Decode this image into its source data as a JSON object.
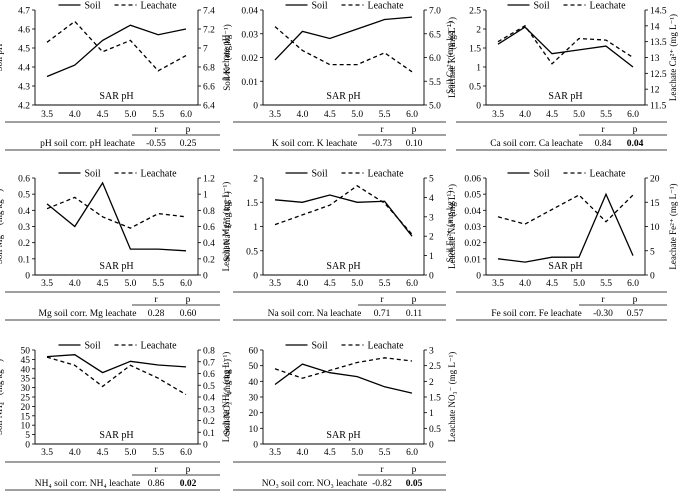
{
  "figure": {
    "legend_soil": "Soil",
    "legend_leachate": "Leachate",
    "r_header": "r",
    "p_header": "p"
  },
  "chart_data": [
    {
      "id": "ph",
      "type": "line",
      "title": "pH",
      "x": [
        3.5,
        4.0,
        4.5,
        5.0,
        5.5,
        6.0
      ],
      "xlabel": "SAR pH",
      "ylabel_left": "Soil pH",
      "ylabel_right": "Leachate pH",
      "ylim_left": [
        4.2,
        4.7
      ],
      "yticks_left": [
        "4.2",
        "4.3",
        "4.4",
        "4.5",
        "4.6",
        "4.7"
      ],
      "ylim_right": [
        6.4,
        7.4
      ],
      "yticks_right": [
        "6.4",
        "6.6",
        "6.8",
        "7",
        "7.2",
        "7.4"
      ],
      "series": [
        {
          "name": "Soil",
          "axis": "left",
          "style": "solid",
          "values": [
            4.35,
            4.41,
            4.54,
            4.62,
            4.57,
            4.6
          ]
        },
        {
          "name": "Leachate",
          "axis": "right",
          "style": "dashed",
          "values": [
            7.06,
            7.28,
            6.96,
            7.08,
            6.76,
            6.92
          ]
        }
      ],
      "stats_label": "pH soil corr. pH leachate",
      "r": "-0.55",
      "p": "0.25",
      "p_bold": false
    },
    {
      "id": "k",
      "type": "line",
      "title": "K",
      "x": [
        3.5,
        4.0,
        4.5,
        5.0,
        5.5,
        6.0
      ],
      "xlabel": "SAR pH",
      "ylabel_left": "Soil K⁺ (mg kg⁻¹)",
      "ylabel_right": "Leachate K⁺ (mg L⁻¹)",
      "ylim_left": [
        0,
        0.04
      ],
      "yticks_left": [
        "0",
        "0.01",
        "0.02",
        "0.03",
        "0.04"
      ],
      "ylim_right": [
        5,
        7
      ],
      "yticks_right": [
        "5.0",
        "5.5",
        "6.0",
        "6.5",
        "7.0"
      ],
      "series": [
        {
          "name": "Soil",
          "axis": "left",
          "style": "solid",
          "values": [
            0.019,
            0.031,
            0.028,
            0.032,
            0.036,
            0.037
          ]
        },
        {
          "name": "Leachate",
          "axis": "right",
          "style": "dashed",
          "values": [
            6.65,
            6.15,
            5.85,
            5.85,
            6.1,
            5.7
          ]
        }
      ],
      "stats_label": "K soil corr. K leachate",
      "r": "-0.73",
      "p": "0.10",
      "p_bold": false
    },
    {
      "id": "ca",
      "type": "line",
      "title": "Ca",
      "x": [
        3.5,
        4.0,
        4.5,
        5.0,
        5.5,
        6.0
      ],
      "xlabel": "SAR pH",
      "ylabel_left": "Soil Ca²⁺ (mg kg⁻¹)",
      "ylabel_right": "Leachate Ca²⁺ (mg L⁻¹)",
      "ylim_left": [
        0,
        2.5
      ],
      "yticks_left": [
        "0",
        "0.5",
        "1",
        "1.5",
        "2",
        "2.5"
      ],
      "ylim_right": [
        11.5,
        14.5
      ],
      "yticks_right": [
        "11.5",
        "12",
        "12.5",
        "13",
        "13.5",
        "14",
        "14.5"
      ],
      "series": [
        {
          "name": "Soil",
          "axis": "left",
          "style": "solid",
          "values": [
            1.6,
            2.05,
            1.35,
            1.45,
            1.55,
            1.0
          ]
        },
        {
          "name": "Leachate",
          "axis": "right",
          "style": "dashed",
          "values": [
            13.5,
            14.0,
            12.8,
            13.6,
            13.55,
            13.0
          ]
        }
      ],
      "stats_label": "Ca soil corr. Ca leachate",
      "r": "0.84",
      "p": "0.04",
      "p_bold": true
    },
    {
      "id": "mg",
      "type": "line",
      "title": "Mg",
      "x": [
        3.5,
        4.0,
        4.5,
        5.0,
        5.5,
        6.0
      ],
      "xlabel": "SAR pH",
      "ylabel_left": "Soil Mg²⁺ (mg kg⁻¹)",
      "ylabel_right": "Leachate Mg²⁺ (mg L⁻¹)",
      "ylim_left": [
        0,
        0.6
      ],
      "yticks_left": [
        "0",
        "0.1",
        "0.2",
        "0.3",
        "0.4",
        "0.5",
        "0.6"
      ],
      "ylim_right": [
        0,
        1.2
      ],
      "yticks_right": [
        "0",
        "0.2",
        "0.4",
        "0.6",
        "0.8",
        "1",
        "1.2"
      ],
      "series": [
        {
          "name": "Soil",
          "axis": "left",
          "style": "solid",
          "values": [
            0.44,
            0.3,
            0.57,
            0.16,
            0.16,
            0.15
          ]
        },
        {
          "name": "Leachate",
          "axis": "right",
          "style": "dashed",
          "values": [
            0.82,
            0.96,
            0.72,
            0.58,
            0.76,
            0.72
          ]
        }
      ],
      "stats_label": "Mg soil corr. Mg leachate",
      "r": "0.28",
      "p": "0.60",
      "p_bold": false
    },
    {
      "id": "na",
      "type": "line",
      "title": "Na",
      "x": [
        3.5,
        4.0,
        4.5,
        5.0,
        5.5,
        6.0
      ],
      "xlabel": "SAR pH",
      "ylabel_left": "Soil Na⁺ (mg kg⁻¹)",
      "ylabel_right": "Leachate Na⁺ (mg L⁻¹)",
      "ylim_left": [
        0,
        2
      ],
      "yticks_left": [
        "0",
        "0.5",
        "1",
        "1.5",
        "2"
      ],
      "ylim_right": [
        0,
        5
      ],
      "yticks_right": [
        "0",
        "1",
        "2",
        "3",
        "4",
        "5"
      ],
      "series": [
        {
          "name": "Soil",
          "axis": "left",
          "style": "solid",
          "values": [
            1.55,
            1.5,
            1.65,
            1.5,
            1.52,
            0.8
          ]
        },
        {
          "name": "Leachate",
          "axis": "right",
          "style": "dashed",
          "values": [
            2.6,
            3.1,
            3.6,
            4.6,
            3.7,
            2.1
          ]
        }
      ],
      "stats_label": "Na soil corr. Na leachate",
      "r": "0.71",
      "p": "0.11",
      "p_bold": false
    },
    {
      "id": "fe",
      "type": "line",
      "title": "Fe",
      "x": [
        3.5,
        4.0,
        4.5,
        5.0,
        5.5,
        6.0
      ],
      "xlabel": "SAR pH",
      "ylabel_left": "Soil Fe²⁺ (mg kg⁻¹)",
      "ylabel_right": "Leachate Fe²⁺ (mg L⁻¹)",
      "ylim_left": [
        0,
        0.06
      ],
      "yticks_left": [
        "0",
        "0.01",
        "0.02",
        "0.03",
        "0.04",
        "0.05",
        "0.06"
      ],
      "ylim_right": [
        0,
        20
      ],
      "yticks_right": [
        "0",
        "5",
        "10",
        "15",
        "20"
      ],
      "series": [
        {
          "name": "Soil",
          "axis": "left",
          "style": "solid",
          "values": [
            0.01,
            0.008,
            0.011,
            0.011,
            0.05,
            0.012
          ]
        },
        {
          "name": "Leachate",
          "axis": "right",
          "style": "dashed",
          "values": [
            12,
            10.5,
            13.5,
            16.5,
            11,
            16.5
          ]
        }
      ],
      "stats_label": "Fe soil corr. Fe leachate",
      "r": "-0.30",
      "p": "0.57",
      "p_bold": false
    },
    {
      "id": "nh4",
      "type": "line",
      "title": "NH4",
      "x": [
        3.5,
        4.0,
        4.5,
        5.0,
        5.5,
        6.0
      ],
      "xlabel": "SAR pH",
      "ylabel_left": "Soil NH₄⁺ (mg kg⁻¹)",
      "ylabel_right": "Leachate NH₄⁺ (mg L⁻¹)",
      "ylim_left": [
        0,
        50
      ],
      "yticks_left": [
        "0",
        "5",
        "10",
        "15",
        "20",
        "25",
        "30",
        "35",
        "40",
        "45",
        "50"
      ],
      "ylim_right": [
        0,
        0.8
      ],
      "yticks_right": [
        "0",
        "0.1",
        "0.2",
        "0.3",
        "0.4",
        "0.5",
        "0.6",
        "0.7",
        "0.8"
      ],
      "series": [
        {
          "name": "Soil",
          "axis": "left",
          "style": "solid",
          "values": [
            46.5,
            47.5,
            38,
            44,
            42,
            41
          ]
        },
        {
          "name": "Leachate",
          "axis": "right",
          "style": "dashed",
          "values": [
            0.74,
            0.67,
            0.49,
            0.67,
            0.56,
            0.42
          ]
        }
      ],
      "stats_label": "NH₄ soil corr. NH₄ leachate",
      "r": "0.86",
      "p": "0.02",
      "p_bold": true
    },
    {
      "id": "no3",
      "type": "line",
      "title": "NO3",
      "x": [
        3.5,
        4.0,
        4.5,
        5.0,
        5.5,
        6.0
      ],
      "xlabel": "SAR pH",
      "ylabel_left": "Soil NO₃⁻ (mg kg⁻¹)",
      "ylabel_right": "Leachate NO₃⁻ (mg L⁻¹)",
      "ylim_left": [
        0,
        60
      ],
      "yticks_left": [
        "0",
        "10",
        "20",
        "30",
        "40",
        "50",
        "60"
      ],
      "ylim_right": [
        0,
        3
      ],
      "yticks_right": [
        "0",
        "0.5",
        "1",
        "1.5",
        "2",
        "2.5",
        "3"
      ],
      "series": [
        {
          "name": "Soil",
          "axis": "left",
          "style": "solid",
          "values": [
            38,
            51,
            45.5,
            43,
            36.5,
            32.5
          ]
        },
        {
          "name": "Leachate",
          "axis": "right",
          "style": "dashed",
          "values": [
            2.4,
            2.1,
            2.35,
            2.6,
            2.75,
            2.65
          ]
        }
      ],
      "stats_label": "NO₃ soil corr. NO₃ leachate",
      "r": "-0.82",
      "p": "0.05",
      "p_bold": true
    }
  ]
}
